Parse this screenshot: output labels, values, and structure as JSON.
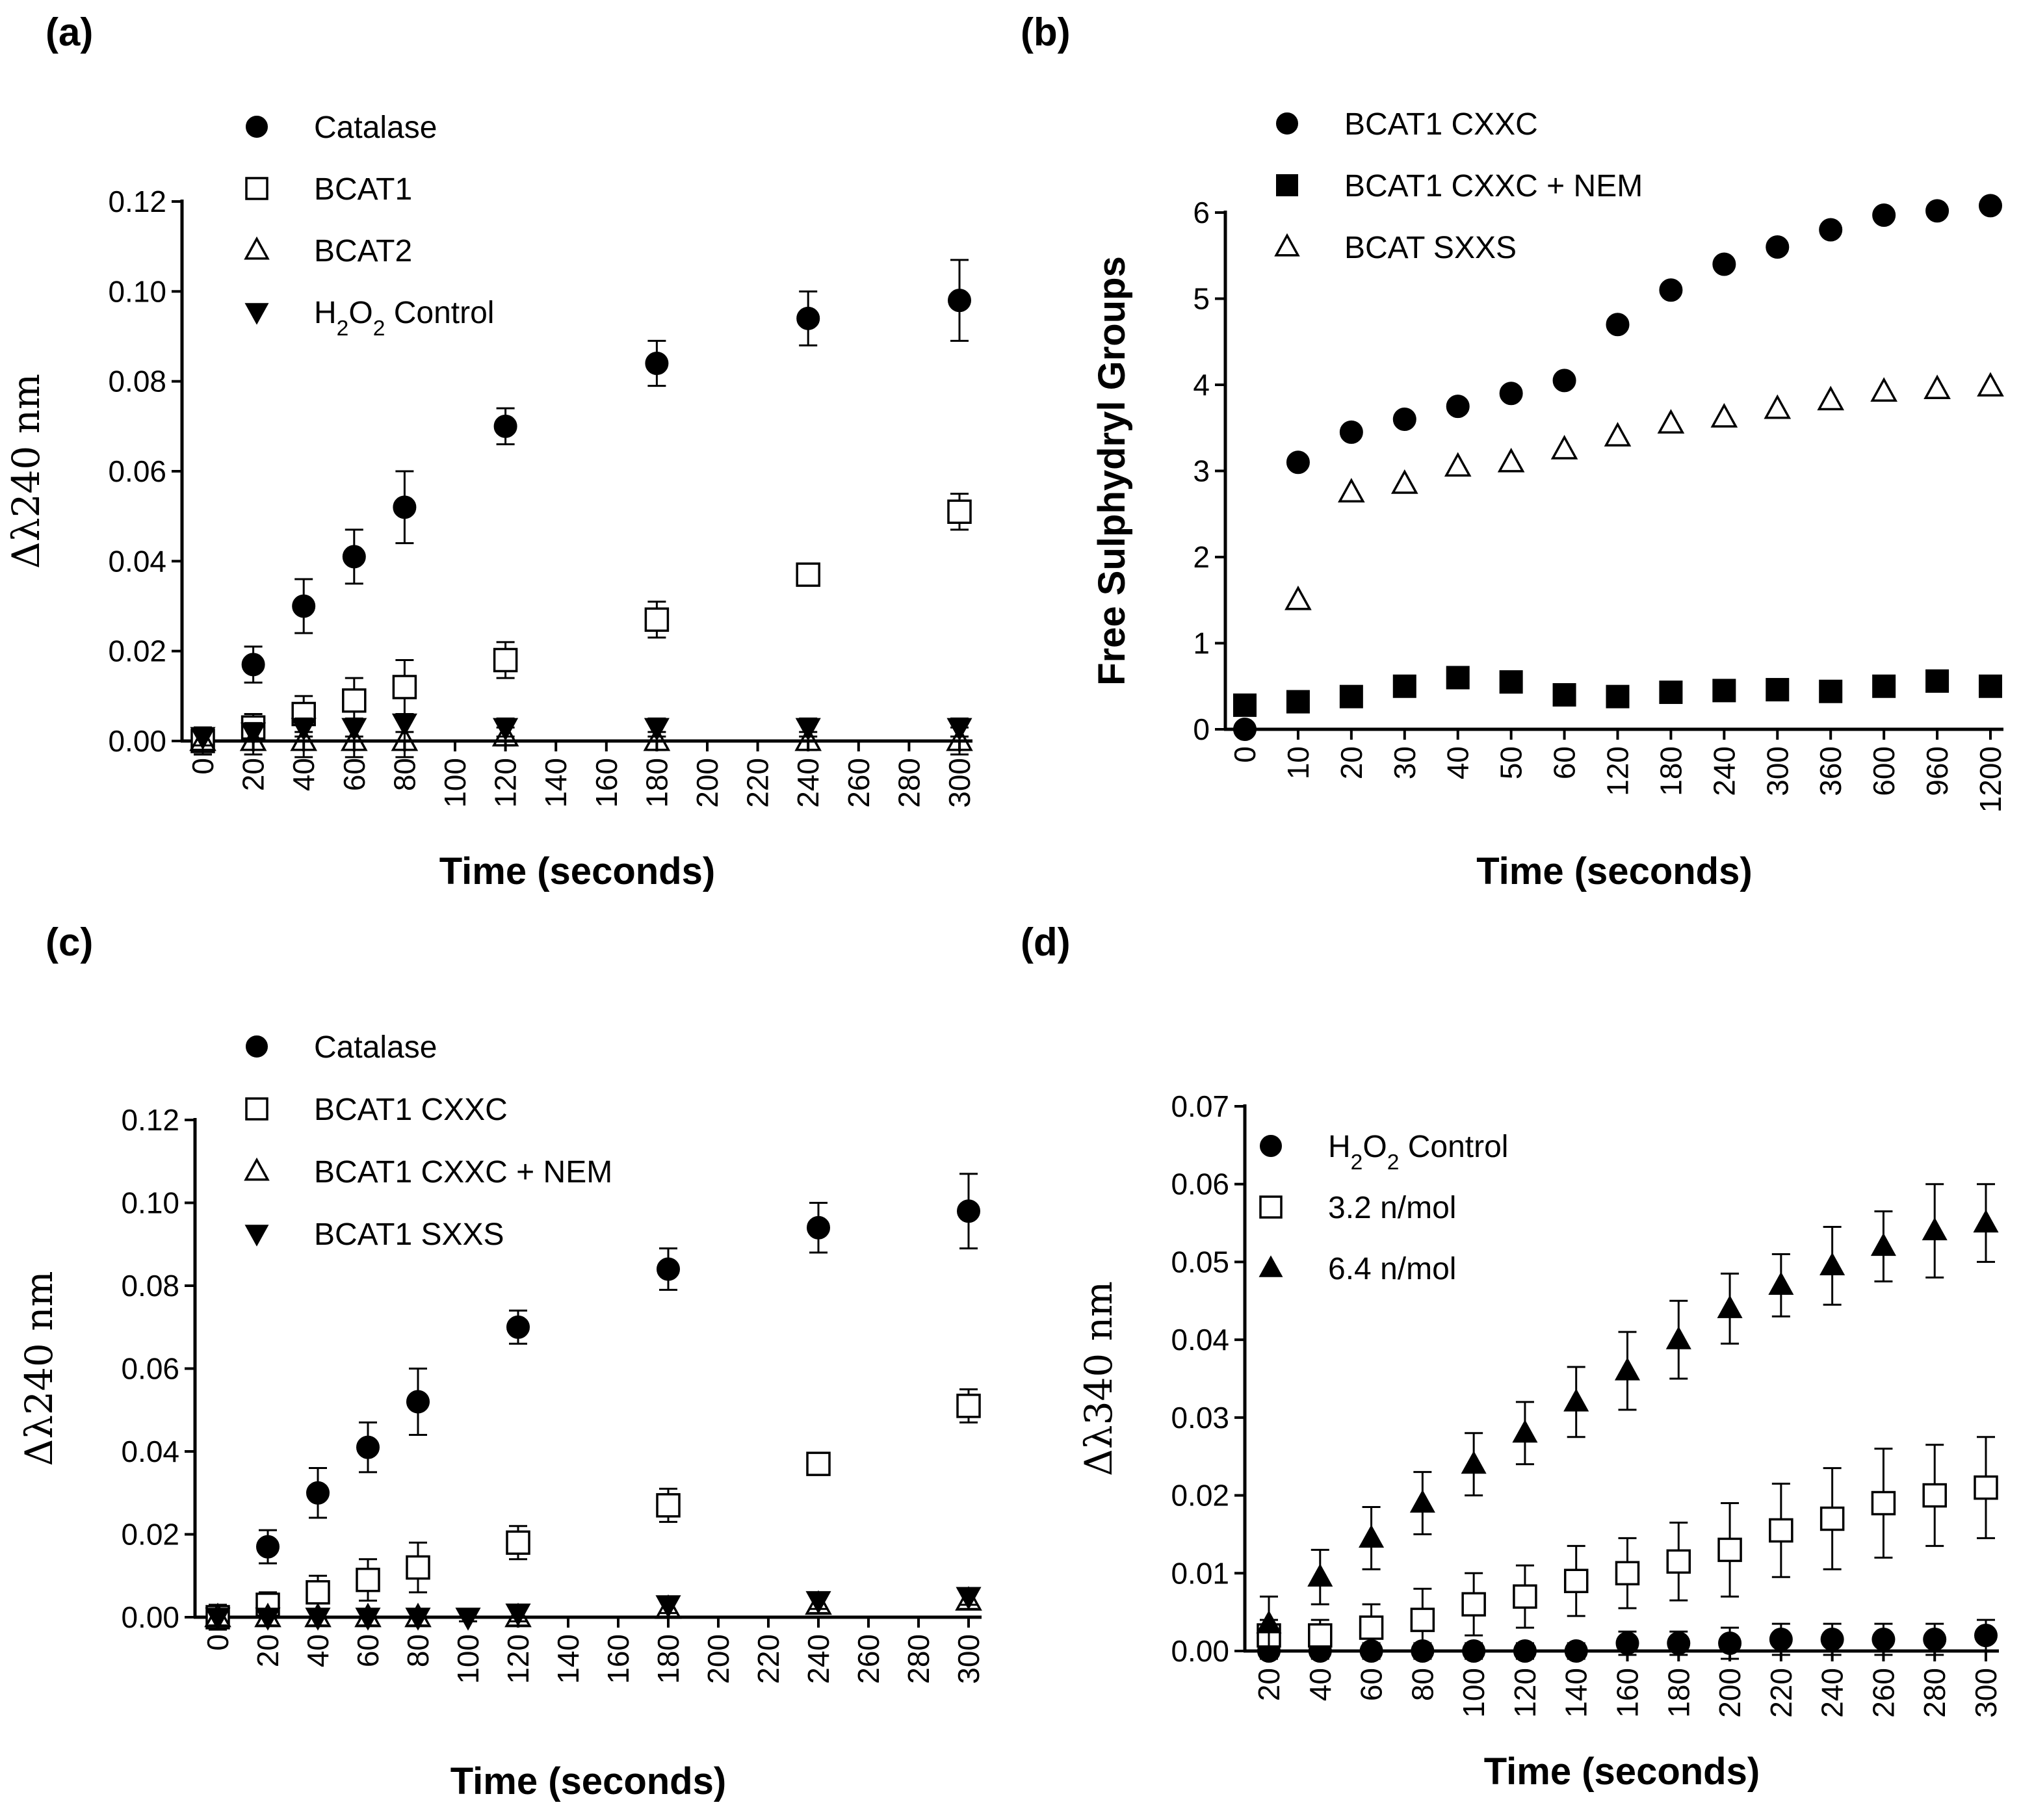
{
  "chart_data": [
    {
      "panel": "(a)",
      "type": "scatter",
      "ylabel": "Δλ240 nm",
      "xlabel": "Time (seconds)",
      "ylim": [
        0,
        0.12
      ],
      "yticks": [
        "0.00",
        "0.02",
        "0.04",
        "0.06",
        "0.08",
        "0.10",
        "0.12"
      ],
      "xlim": [
        0,
        300
      ],
      "xticks": [
        "0",
        "20",
        "40",
        "60",
        "80",
        "100",
        "120",
        "140",
        "160",
        "180",
        "200",
        "220",
        "240",
        "260",
        "280",
        "300"
      ],
      "legend_position": "top-left",
      "series": [
        {
          "name": "Catalase",
          "marker": "circle",
          "x": [
            20,
            40,
            60,
            80,
            120,
            180,
            240,
            300
          ],
          "values": [
            0.017,
            0.03,
            0.041,
            0.052,
            0.07,
            0.084,
            0.094,
            0.098
          ],
          "errors": [
            0.004,
            0.006,
            0.006,
            0.008,
            0.004,
            0.005,
            0.006,
            0.009
          ]
        },
        {
          "name": "BCAT1",
          "marker": "square-open",
          "x": [
            0,
            20,
            40,
            60,
            80,
            120,
            180,
            240,
            300
          ],
          "values": [
            0.0,
            0.003,
            0.006,
            0.009,
            0.012,
            0.018,
            0.027,
            0.037,
            0.051
          ],
          "errors": [
            0.003,
            0.003,
            0.004,
            0.005,
            0.006,
            0.004,
            0.004,
            0.002,
            0.004
          ]
        },
        {
          "name": "BCAT2",
          "marker": "triangle-up-open",
          "x": [
            0,
            20,
            40,
            60,
            80,
            120,
            180,
            240,
            300
          ],
          "values": [
            0.0,
            0.0,
            0.0,
            0.0,
            0.0,
            0.001,
            0.0,
            0.0,
            0.0
          ],
          "errors": [
            0.003,
            0.003,
            0.004,
            0.004,
            0.005,
            0.002,
            0.002,
            0.002,
            0.003
          ]
        },
        {
          "name": "H₂O₂ Control",
          "marker": "triangle-down",
          "x": [
            0,
            20,
            40,
            60,
            80,
            120,
            180,
            240,
            300
          ],
          "values": [
            0.001,
            0.002,
            0.003,
            0.003,
            0.004,
            0.003,
            0.003,
            0.003,
            0.003
          ],
          "errors": [
            0.002,
            0.002,
            0.002,
            0.002,
            0.002,
            0.002,
            0.002,
            0.002,
            0.002
          ]
        }
      ]
    },
    {
      "panel": "(b)",
      "type": "scatter",
      "ylabel": "Free Sulphydryl Groups",
      "xlabel": "Time (seconds)",
      "ylim": [
        0,
        6
      ],
      "yticks": [
        "0",
        "1",
        "2",
        "3",
        "4",
        "5",
        "6"
      ],
      "categories": [
        "0",
        "10",
        "20",
        "30",
        "40",
        "50",
        "60",
        "120",
        "180",
        "240",
        "300",
        "360",
        "600",
        "960",
        "1200"
      ],
      "legend_position": "top-left",
      "series": [
        {
          "name": "BCAT1 CXXC",
          "marker": "circle",
          "values": [
            0.0,
            3.1,
            3.45,
            3.6,
            3.75,
            3.9,
            4.05,
            4.7,
            5.1,
            5.4,
            5.6,
            5.8,
            5.97,
            6.02,
            6.08
          ]
        },
        {
          "name": "BCAT1 CXXC + NEM",
          "marker": "square",
          "values": [
            0.28,
            0.32,
            0.38,
            0.5,
            0.6,
            0.55,
            0.4,
            0.38,
            0.43,
            0.45,
            0.46,
            0.44,
            0.5,
            0.56,
            0.5
          ]
        },
        {
          "name": "BCAT SXXS",
          "marker": "triangle-up-open",
          "values": [
            null,
            1.5,
            2.75,
            2.85,
            3.05,
            3.1,
            3.25,
            3.4,
            3.55,
            3.62,
            3.72,
            3.82,
            3.92,
            3.95,
            3.98
          ]
        }
      ]
    },
    {
      "panel": "(c)",
      "type": "scatter",
      "ylabel": "Δλ240 nm",
      "xlabel": "Time (seconds)",
      "ylim": [
        0,
        0.12
      ],
      "yticks": [
        "0.00",
        "0.02",
        "0.04",
        "0.06",
        "0.08",
        "0.10",
        "0.12"
      ],
      "xlim": [
        0,
        300
      ],
      "xticks": [
        "0",
        "20",
        "40",
        "60",
        "80",
        "100",
        "120",
        "140",
        "160",
        "180",
        "200",
        "220",
        "240",
        "260",
        "280",
        "300"
      ],
      "legend_position": "top-left",
      "series": [
        {
          "name": "Catalase",
          "marker": "circle",
          "x": [
            20,
            40,
            60,
            80,
            120,
            180,
            240,
            300
          ],
          "values": [
            0.017,
            0.03,
            0.041,
            0.052,
            0.07,
            0.084,
            0.094,
            0.098
          ],
          "errors": [
            0.004,
            0.006,
            0.006,
            0.008,
            0.004,
            0.005,
            0.006,
            0.009
          ]
        },
        {
          "name": "BCAT1 CXXC",
          "marker": "square-open",
          "x": [
            0,
            20,
            40,
            60,
            80,
            120,
            180,
            240,
            300
          ],
          "values": [
            0.0,
            0.003,
            0.006,
            0.009,
            0.012,
            0.018,
            0.027,
            0.037,
            0.051
          ],
          "errors": [
            0.003,
            0.003,
            0.004,
            0.005,
            0.006,
            0.004,
            0.004,
            0.002,
            0.004
          ]
        },
        {
          "name": "BCAT1 CXXC + NEM",
          "marker": "triangle-up-open",
          "x": [
            0,
            20,
            40,
            60,
            80,
            120,
            180,
            240,
            300
          ],
          "values": [
            0.0,
            0.0,
            0.0,
            0.0,
            0.0,
            0.0,
            0.002,
            0.003,
            0.004
          ],
          "errors": [
            0.002,
            0.002,
            0.002,
            0.002,
            0.002,
            0.002,
            0.002,
            0.002,
            0.002
          ]
        },
        {
          "name": "BCAT1 SXXS",
          "marker": "triangle-down",
          "x": [
            0,
            20,
            40,
            60,
            80,
            100,
            120,
            180,
            240,
            300
          ],
          "values": [
            0.0,
            0.0,
            0.0,
            0.0,
            0.0,
            0.0,
            0.001,
            0.003,
            0.004,
            0.005
          ],
          "errors": [
            0.002,
            0.002,
            0.002,
            0.002,
            0.002,
            0.001,
            0.002,
            0.002,
            0.002,
            0.002
          ]
        }
      ]
    },
    {
      "panel": "(d)",
      "type": "scatter",
      "ylabel": "Δλ340 nm",
      "xlabel": "Time (seconds)",
      "ylim": [
        0,
        0.07
      ],
      "yticks": [
        "0.00",
        "0.01",
        "0.02",
        "0.03",
        "0.04",
        "0.05",
        "0.06",
        "0.07"
      ],
      "categories": [
        "20",
        "40",
        "60",
        "80",
        "100",
        "120",
        "140",
        "160",
        "180",
        "200",
        "220",
        "240",
        "260",
        "280",
        "300"
      ],
      "legend_position": "top-left",
      "series": [
        {
          "name": "H₂O₂ Control",
          "marker": "circle",
          "values": [
            0.0,
            0.0,
            0.0,
            0.0,
            0.0,
            0.0,
            0.0,
            0.001,
            0.001,
            0.001,
            0.0015,
            0.0015,
            0.0015,
            0.0015,
            0.002
          ],
          "errors": [
            0.001,
            0.001,
            0.001,
            0.001,
            0.001,
            0.001,
            0.001,
            0.0015,
            0.0015,
            0.002,
            0.002,
            0.002,
            0.002,
            0.002,
            0.002
          ]
        },
        {
          "name": "3.2 n/mol",
          "marker": "square-open",
          "values": [
            0.002,
            0.002,
            0.003,
            0.004,
            0.006,
            0.007,
            0.009,
            0.01,
            0.0115,
            0.013,
            0.0155,
            0.017,
            0.019,
            0.02,
            0.021
          ],
          "errors": [
            0.002,
            0.002,
            0.003,
            0.004,
            0.004,
            0.004,
            0.0045,
            0.0045,
            0.005,
            0.006,
            0.006,
            0.0065,
            0.007,
            0.0065,
            0.0065
          ]
        },
        {
          "name": "6.4 n/mol",
          "marker": "triangle-up",
          "values": [
            0.0035,
            0.0095,
            0.0145,
            0.019,
            0.024,
            0.028,
            0.032,
            0.036,
            0.04,
            0.044,
            0.047,
            0.0495,
            0.052,
            0.054,
            0.055
          ],
          "errors": [
            0.0035,
            0.0035,
            0.004,
            0.004,
            0.004,
            0.004,
            0.0045,
            0.005,
            0.005,
            0.0045,
            0.004,
            0.005,
            0.0045,
            0.006,
            0.005
          ]
        }
      ]
    }
  ]
}
